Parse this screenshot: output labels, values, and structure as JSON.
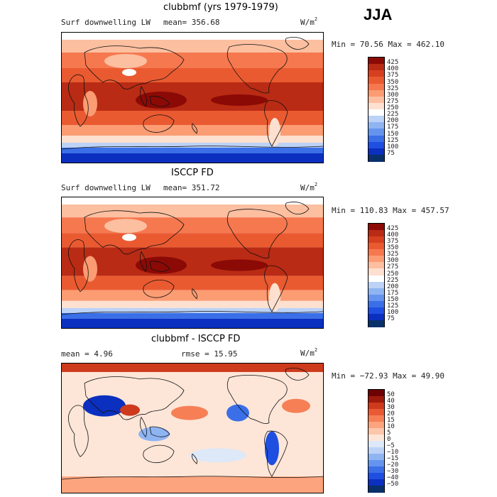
{
  "season": "JJA",
  "colors": {
    "diverging": [
      "#08306b",
      "#0b2fbf",
      "#1f4fe0",
      "#3a6fe8",
      "#6494ee",
      "#8fb4f2",
      "#bcd2f6",
      "#ffffff",
      "#fde0cf",
      "#fcbfa0",
      "#fb9c73",
      "#f6784f",
      "#ea5a31",
      "#d6401f",
      "#b92b14",
      "#8b0a06"
    ],
    "anomaly": [
      "#08306b",
      "#0b2fbf",
      "#1f4fe0",
      "#3a6fe8",
      "#6494ee",
      "#8fb4f2",
      "#bcd2f6",
      "#dde8f9",
      "#fde6d8",
      "#fcc7ab",
      "#fba47d",
      "#f67f56",
      "#e95a34",
      "#cd3a1c",
      "#9e1a0b",
      "#6e0202"
    ],
    "coast": "#111111"
  },
  "chart_data": [
    {
      "type": "heatmap",
      "id": "model",
      "title": "clubbmf (yrs 1979-1979)",
      "variable_label": "Surf downwelling LW",
      "mean_label": "mean= 356.68",
      "units": "W/m",
      "units_sup": "2",
      "minmax_label": "Min =  70.56 Max = 462.10",
      "min": 70.56,
      "max": 462.1,
      "mean": 356.68,
      "colorbar_ticks": [
        "425",
        "400",
        "375",
        "350",
        "325",
        "300",
        "275",
        "250",
        "225",
        "200",
        "175",
        "150",
        "125",
        "100",
        "75"
      ],
      "colorbar_levels": [
        75,
        100,
        125,
        150,
        175,
        200,
        225,
        250,
        275,
        300,
        325,
        350,
        375,
        400,
        425
      ],
      "map_projection": "cylindrical equidistant, Pacific-centered"
    },
    {
      "type": "heatmap",
      "id": "obs",
      "title": "ISCCP FD",
      "variable_label": "Surf downwelling LW",
      "mean_label": "mean= 351.72",
      "units": "W/m",
      "units_sup": "2",
      "minmax_label": "Min = 110.83 Max = 457.57",
      "min": 110.83,
      "max": 457.57,
      "mean": 351.72,
      "colorbar_ticks": [
        "425",
        "400",
        "375",
        "350",
        "325",
        "300",
        "275",
        "250",
        "225",
        "200",
        "175",
        "150",
        "125",
        "100",
        "75"
      ],
      "colorbar_levels": [
        75,
        100,
        125,
        150,
        175,
        200,
        225,
        250,
        275,
        300,
        325,
        350,
        375,
        400,
        425
      ],
      "map_projection": "cylindrical equidistant, Pacific-centered"
    },
    {
      "type": "heatmap",
      "id": "diff",
      "title": "clubbmf - ISCCP FD",
      "mean_label": "mean =   4.96",
      "rmse_label": "rmse =  15.95",
      "units": "W/m",
      "units_sup": "2",
      "minmax_label": "Min = −72.93 Max =  49.90",
      "min": -72.93,
      "max": 49.9,
      "mean": 4.96,
      "rmse": 15.95,
      "colorbar_ticks": [
        "50",
        "40",
        "30",
        "20",
        "15",
        "10",
        "5",
        "0",
        "−5",
        "−10",
        "−15",
        "−20",
        "−30",
        "−40",
        "−50"
      ],
      "colorbar_levels": [
        -50,
        -40,
        -30,
        -20,
        -15,
        -10,
        -5,
        0,
        5,
        10,
        15,
        20,
        30,
        40,
        50
      ],
      "map_projection": "cylindrical equidistant, Pacific-centered"
    }
  ]
}
